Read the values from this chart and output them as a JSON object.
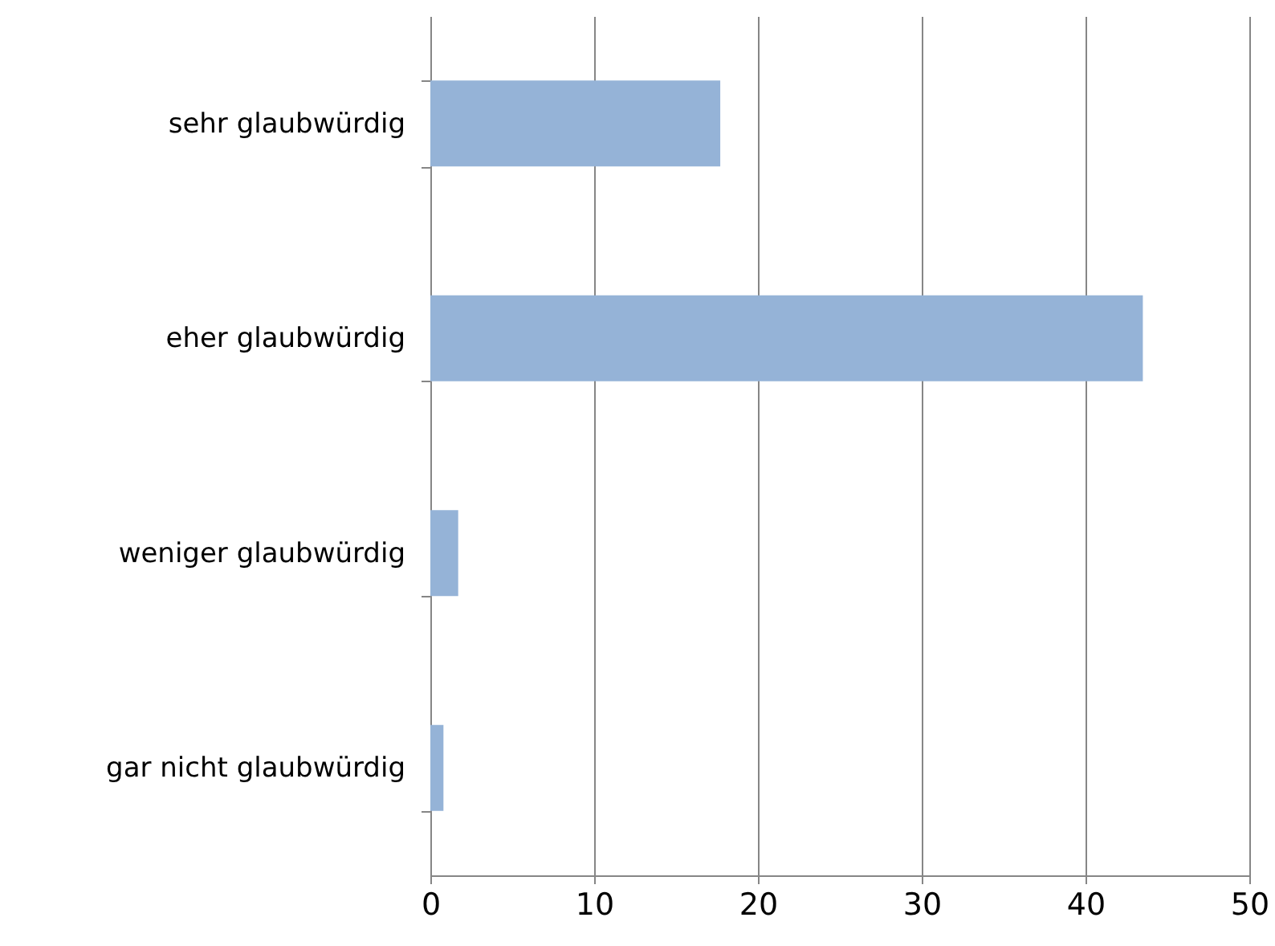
{
  "chart_data": {
    "type": "bar",
    "orientation": "horizontal",
    "categories": [
      "sehr glaubwürdig",
      "eher glaubwürdig",
      "weniger glaubwürdig",
      "gar nicht glaubwürdig"
    ],
    "values": [
      17.7,
      43.5,
      1.7,
      0.8
    ],
    "color": "#95b3d7",
    "xlim": [
      0,
      50
    ],
    "xticks": [
      0,
      10,
      20,
      30,
      40,
      50
    ],
    "grid": "x"
  }
}
